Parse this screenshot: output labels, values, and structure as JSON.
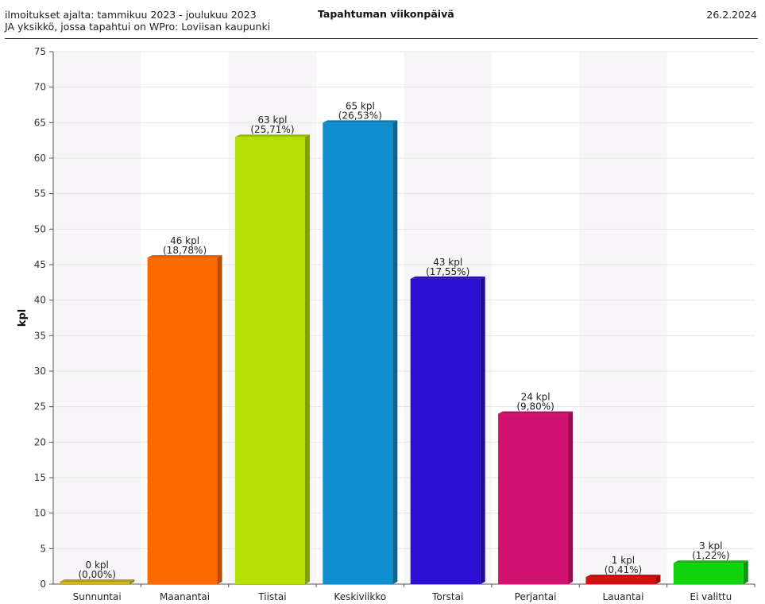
{
  "header": {
    "line1": "ilmoitukset ajalta: tammikuu 2023 - joulukuu 2023",
    "line2": "JA yksikkö, jossa tapahtui on WPro: Loviisan kaupunki",
    "title": "Tapahtuman viikonpäivä",
    "date": "26.2.2024"
  },
  "chart_data": {
    "type": "bar",
    "title": "Tapahtuman viikonpäivä",
    "xlabel": "",
    "ylabel": "kpl",
    "ylim": [
      0,
      75
    ],
    "yticks": [
      0,
      5,
      10,
      15,
      20,
      25,
      30,
      35,
      40,
      45,
      50,
      55,
      60,
      65,
      70,
      75
    ],
    "grid": true,
    "categories": [
      "Sunnuntai",
      "Maanantai",
      "Tiistai",
      "Keskiviikko",
      "Torstai",
      "Perjantai",
      "Lauantai",
      "Ei valittu"
    ],
    "values": [
      0,
      46,
      63,
      65,
      43,
      24,
      1,
      3
    ],
    "value_labels": [
      "0 kpl",
      "46 kpl",
      "63 kpl",
      "65 kpl",
      "43 kpl",
      "24 kpl",
      "1 kpl",
      "3 kpl"
    ],
    "percent_labels": [
      "(0,00%)",
      "(18,78%)",
      "(25,71%)",
      "(26,53%)",
      "(17,55%)",
      "(9,80%)",
      "(0,41%)",
      "(1,22%)"
    ],
    "colors": [
      "#d4b41c",
      "#ff6a00",
      "#b4e004",
      "#0e8ecf",
      "#2d0fd3",
      "#d0116f",
      "#d40f0f",
      "#0fd40f"
    ]
  }
}
